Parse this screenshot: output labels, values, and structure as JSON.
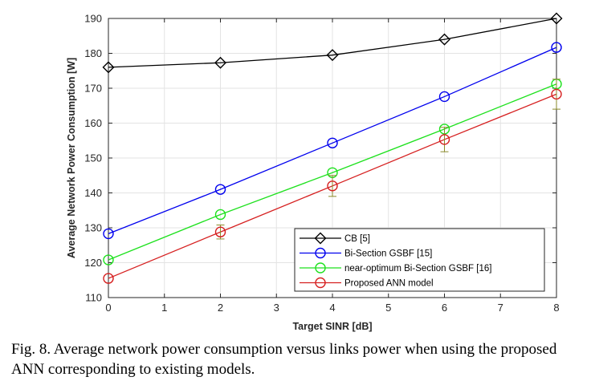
{
  "caption": "Fig. 8.  Average network power consumption versus links power when using the proposed ANN corresponding to existing models.",
  "chart_data": {
    "type": "line",
    "xlabel": "Target SINR [dB]",
    "ylabel": "Average Network Power Consumption [W]",
    "xlim": [
      0,
      8
    ],
    "ylim": [
      110,
      190
    ],
    "xticks": [
      0,
      1,
      2,
      3,
      4,
      5,
      6,
      7,
      8
    ],
    "yticks": [
      110,
      120,
      130,
      140,
      150,
      160,
      170,
      180,
      190
    ],
    "grid": true,
    "legend_position": "bottom-right",
    "x": [
      0,
      2,
      4,
      6,
      8
    ],
    "series": [
      {
        "name": "CB [5]",
        "color": "#000000",
        "marker": "diamond",
        "values": [
          176,
          177.3,
          179.5,
          184,
          190
        ]
      },
      {
        "name": "Bi-Section GSBF [15]",
        "color": "#0000ee",
        "marker": "circle",
        "values": [
          128.3,
          141,
          154.3,
          167.6,
          181.7
        ]
      },
      {
        "name": "near-optimum Bi-Section GSBF [16]",
        "color": "#1ee11e",
        "marker": "circle",
        "values": [
          120.8,
          133.8,
          145.8,
          158.3,
          171.2
        ]
      },
      {
        "name": "Proposed ANN model",
        "color": "#d62020",
        "marker": "circle",
        "values": [
          115.5,
          128.8,
          142,
          155.3,
          168.3
        ],
        "error": [
          0,
          2,
          3,
          3.5,
          4.3
        ]
      }
    ]
  }
}
